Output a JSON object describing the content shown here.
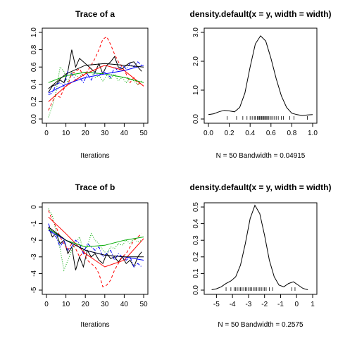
{
  "chart_data": [
    {
      "type": "line",
      "title": "Trace of a",
      "xlabel": "Iterations",
      "ylabel": "",
      "xlim": [
        0,
        50
      ],
      "ylim": [
        0.0,
        1.0
      ],
      "xticks": [
        "0",
        "10",
        "20",
        "30",
        "40",
        "50"
      ],
      "yticks": [
        "0.0",
        "0.2",
        "0.4",
        "0.6",
        "0.8",
        "1.0"
      ],
      "series": [
        {
          "style": "solid",
          "color": "#000000",
          "x": [
            1,
            3,
            5,
            7,
            9,
            11,
            13,
            15,
            17,
            19,
            21,
            23,
            25,
            27,
            29,
            31,
            33,
            35,
            37,
            39,
            41,
            43,
            45,
            47,
            49
          ],
          "y": [
            0.31,
            0.38,
            0.4,
            0.45,
            0.42,
            0.55,
            0.8,
            0.6,
            0.7,
            0.66,
            0.62,
            0.58,
            0.54,
            0.64,
            0.52,
            0.62,
            0.66,
            0.72,
            0.6,
            0.58,
            0.62,
            0.65,
            0.66,
            0.6,
            0.55
          ]
        },
        {
          "style": "dashed",
          "color": "#ff0000",
          "x": [
            1,
            3,
            5,
            7,
            9,
            11,
            13,
            15,
            17,
            19,
            21,
            23,
            25,
            27,
            29,
            31,
            33,
            35,
            37,
            39,
            41,
            43,
            45,
            47,
            49
          ],
          "y": [
            0.1,
            0.2,
            0.28,
            0.25,
            0.35,
            0.4,
            0.52,
            0.55,
            0.58,
            0.5,
            0.55,
            0.62,
            0.7,
            0.8,
            0.92,
            0.95,
            0.86,
            0.75,
            0.66,
            0.6,
            0.52,
            0.42,
            0.48,
            0.4,
            0.42
          ]
        },
        {
          "style": "dotted",
          "color": "#00aa00",
          "x": [
            1,
            3,
            5,
            7,
            9,
            11,
            13,
            15,
            17,
            19,
            21,
            23,
            25,
            27,
            29,
            31,
            33,
            35,
            37,
            39,
            41,
            43,
            45,
            47,
            49
          ],
          "y": [
            0.02,
            0.15,
            0.32,
            0.6,
            0.55,
            0.42,
            0.55,
            0.5,
            0.48,
            0.54,
            0.52,
            0.55,
            0.48,
            0.5,
            0.44,
            0.5,
            0.46,
            0.52,
            0.44,
            0.48,
            0.42,
            0.46,
            0.44,
            0.4,
            0.44
          ]
        },
        {
          "style": "dashdot",
          "color": "#0000ff",
          "x": [
            1,
            3,
            5,
            7,
            9,
            11,
            13,
            15,
            17,
            19,
            21,
            23,
            25,
            27,
            29,
            31,
            33,
            35,
            37,
            39,
            41,
            43,
            45,
            47,
            49
          ],
          "y": [
            0.28,
            0.3,
            0.4,
            0.42,
            0.38,
            0.55,
            0.52,
            0.45,
            0.48,
            0.42,
            0.52,
            0.45,
            0.54,
            0.5,
            0.55,
            0.52,
            0.48,
            0.6,
            0.55,
            0.62,
            0.58,
            0.64,
            0.6,
            0.66,
            0.62
          ]
        },
        {
          "style": "solid",
          "color": "#ff0000",
          "x": [
            1,
            10,
            20,
            30,
            40,
            50
          ],
          "y": [
            0.2,
            0.38,
            0.52,
            0.62,
            0.56,
            0.38
          ]
        },
        {
          "style": "solid",
          "color": "#00aa00",
          "x": [
            1,
            10,
            20,
            30,
            40,
            50
          ],
          "y": [
            0.42,
            0.5,
            0.54,
            0.52,
            0.48,
            0.42
          ]
        },
        {
          "style": "solid",
          "color": "#0000ff",
          "x": [
            1,
            10,
            20,
            30,
            40,
            50
          ],
          "y": [
            0.3,
            0.4,
            0.48,
            0.52,
            0.56,
            0.62
          ]
        },
        {
          "style": "solid",
          "color": "#000000",
          "x": [
            1,
            10,
            20,
            30,
            40,
            50
          ],
          "y": [
            0.35,
            0.52,
            0.62,
            0.64,
            0.62,
            0.6
          ]
        }
      ]
    },
    {
      "type": "line",
      "title": "density.default(x = y, width = width)",
      "xlabel": "N = 50   Bandwidth = 0.04915",
      "ylabel": "",
      "xlim": [
        0.0,
        1.0
      ],
      "ylim": [
        0.0,
        3.0
      ],
      "xticks": [
        "0.0",
        "0.2",
        "0.4",
        "0.6",
        "0.8",
        "1.0"
      ],
      "yticks": [
        "0.0",
        "1.0",
        "2.0",
        "3.0"
      ],
      "series": [
        {
          "style": "solid",
          "color": "#000000",
          "x": [
            0.0,
            0.05,
            0.1,
            0.15,
            0.2,
            0.25,
            0.3,
            0.35,
            0.4,
            0.45,
            0.5,
            0.55,
            0.6,
            0.65,
            0.7,
            0.75,
            0.8,
            0.85,
            0.9,
            0.95,
            1.0
          ],
          "y": [
            0.15,
            0.18,
            0.25,
            0.3,
            0.28,
            0.25,
            0.4,
            0.9,
            1.8,
            2.6,
            2.88,
            2.7,
            2.1,
            1.4,
            0.8,
            0.4,
            0.2,
            0.15,
            0.12,
            0.14,
            0.15
          ]
        }
      ],
      "rug": [
        0.18,
        0.27,
        0.33,
        0.37,
        0.4,
        0.42,
        0.44,
        0.45,
        0.47,
        0.48,
        0.49,
        0.5,
        0.51,
        0.52,
        0.53,
        0.54,
        0.55,
        0.56,
        0.57,
        0.58,
        0.6,
        0.61,
        0.63,
        0.65,
        0.67,
        0.7,
        0.72,
        0.78,
        0.82,
        0.95
      ]
    },
    {
      "type": "line",
      "title": "Trace of b",
      "xlabel": "Iterations",
      "ylabel": "",
      "xlim": [
        0,
        50
      ],
      "ylim": [
        -5,
        0
      ],
      "xticks": [
        "0",
        "10",
        "20",
        "30",
        "40",
        "50"
      ],
      "yticks": [
        "-5",
        "-4",
        "-3",
        "-2",
        "-1",
        "0"
      ],
      "series": [
        {
          "style": "solid",
          "color": "#000000",
          "x": [
            1,
            3,
            5,
            7,
            9,
            11,
            13,
            15,
            17,
            19,
            21,
            23,
            25,
            27,
            29,
            31,
            33,
            35,
            37,
            39,
            41,
            43,
            45,
            47,
            49
          ],
          "y": [
            -1.2,
            -1.8,
            -1.6,
            -2.2,
            -2.0,
            -2.8,
            -2.4,
            -3.8,
            -3.0,
            -3.6,
            -2.6,
            -3.0,
            -2.8,
            -3.2,
            -3.4,
            -2.8,
            -3.1,
            -3.0,
            -3.3,
            -3.0,
            -3.4,
            -3.2,
            -3.6,
            -3.0,
            -2.7
          ]
        },
        {
          "style": "dashed",
          "color": "#ff0000",
          "x": [
            1,
            3,
            5,
            7,
            9,
            11,
            13,
            15,
            17,
            19,
            21,
            23,
            25,
            27,
            29,
            31,
            33,
            35,
            37,
            39,
            41,
            43,
            45,
            47,
            49
          ],
          "y": [
            -0.2,
            -0.8,
            -1.2,
            -1.8,
            -2.2,
            -2.6,
            -2.2,
            -2.5,
            -3.0,
            -2.7,
            -3.2,
            -3.4,
            -3.6,
            -4.0,
            -4.8,
            -4.7,
            -4.4,
            -3.8,
            -3.4,
            -3.0,
            -2.8,
            -2.4,
            -2.0,
            -1.8,
            -1.6
          ]
        },
        {
          "style": "dotted",
          "color": "#00aa00",
          "x": [
            1,
            3,
            5,
            7,
            9,
            11,
            13,
            15,
            17,
            19,
            21,
            23,
            25,
            27,
            29,
            31,
            33,
            35,
            37,
            39,
            41,
            43,
            45,
            47,
            49
          ],
          "y": [
            -0.1,
            -0.5,
            -1.5,
            -2.5,
            -3.8,
            -3.2,
            -2.6,
            -2.2,
            -1.8,
            -2.6,
            -2.4,
            -1.6,
            -2.0,
            -2.2,
            -2.6,
            -2.8,
            -2.4,
            -2.5,
            -2.2,
            -2.3,
            -2.0,
            -2.2,
            -1.9,
            -2.1,
            -2.0
          ]
        },
        {
          "style": "dashdot",
          "color": "#0000ff",
          "x": [
            1,
            3,
            5,
            7,
            9,
            11,
            13,
            15,
            17,
            19,
            21,
            23,
            25,
            27,
            29,
            31,
            33,
            35,
            37,
            39,
            41,
            43,
            45,
            47,
            49
          ],
          "y": [
            -1.0,
            -1.6,
            -1.8,
            -2.4,
            -2.0,
            -2.6,
            -2.4,
            -2.0,
            -2.2,
            -2.8,
            -2.2,
            -2.4,
            -2.6,
            -2.4,
            -3.0,
            -2.8,
            -2.6,
            -3.2,
            -2.8,
            -3.0,
            -3.2,
            -3.0,
            -3.6,
            -3.4,
            -3.6
          ]
        },
        {
          "style": "solid",
          "color": "#ff0000",
          "x": [
            1,
            10,
            20,
            30,
            40,
            50
          ],
          "y": [
            -0.6,
            -1.6,
            -2.8,
            -3.6,
            -3.2,
            -1.9
          ]
        },
        {
          "style": "solid",
          "color": "#00aa00",
          "x": [
            1,
            10,
            20,
            30,
            40,
            50
          ],
          "y": [
            -1.3,
            -2.0,
            -2.4,
            -2.3,
            -2.0,
            -1.8
          ]
        },
        {
          "style": "solid",
          "color": "#0000ff",
          "x": [
            1,
            10,
            20,
            30,
            40,
            50
          ],
          "y": [
            -1.4,
            -2.0,
            -2.6,
            -2.9,
            -3.0,
            -3.2
          ]
        },
        {
          "style": "solid",
          "color": "#000000",
          "x": [
            1,
            10,
            20,
            30,
            40,
            50
          ],
          "y": [
            -1.2,
            -2.0,
            -2.6,
            -2.9,
            -3.0,
            -3.0
          ]
        }
      ]
    },
    {
      "type": "line",
      "title": "density.default(x = y, width = width)",
      "xlabel": "N = 50   Bandwidth = 0.2575",
      "ylabel": "",
      "xlim": [
        -5.5,
        1.0
      ],
      "ylim": [
        0.0,
        0.5
      ],
      "xticks": [
        "-5",
        "-4",
        "-3",
        "-2",
        "-1",
        "0",
        "1"
      ],
      "yticks": [
        "0.0",
        "0.1",
        "0.2",
        "0.3",
        "0.4",
        "0.5"
      ],
      "series": [
        {
          "style": "solid",
          "color": "#000000",
          "x": [
            -5.3,
            -5.0,
            -4.7,
            -4.4,
            -4.1,
            -3.8,
            -3.5,
            -3.2,
            -2.9,
            -2.6,
            -2.3,
            -2.0,
            -1.7,
            -1.4,
            -1.1,
            -0.8,
            -0.5,
            -0.2,
            0.1,
            0.4,
            0.7
          ],
          "y": [
            0.002,
            0.008,
            0.02,
            0.04,
            0.055,
            0.08,
            0.15,
            0.28,
            0.43,
            0.51,
            0.46,
            0.33,
            0.18,
            0.08,
            0.03,
            0.02,
            0.04,
            0.05,
            0.03,
            0.01,
            0.002
          ]
        }
      ],
      "rug": [
        -4.4,
        -4.1,
        -3.9,
        -3.8,
        -3.7,
        -3.6,
        -3.5,
        -3.4,
        -3.3,
        -3.2,
        -3.1,
        -3.0,
        -2.9,
        -2.8,
        -2.7,
        -2.6,
        -2.5,
        -2.4,
        -2.3,
        -2.2,
        -2.1,
        -2.0,
        -1.9,
        -1.7,
        -1.5,
        -0.3,
        -0.1
      ]
    }
  ]
}
